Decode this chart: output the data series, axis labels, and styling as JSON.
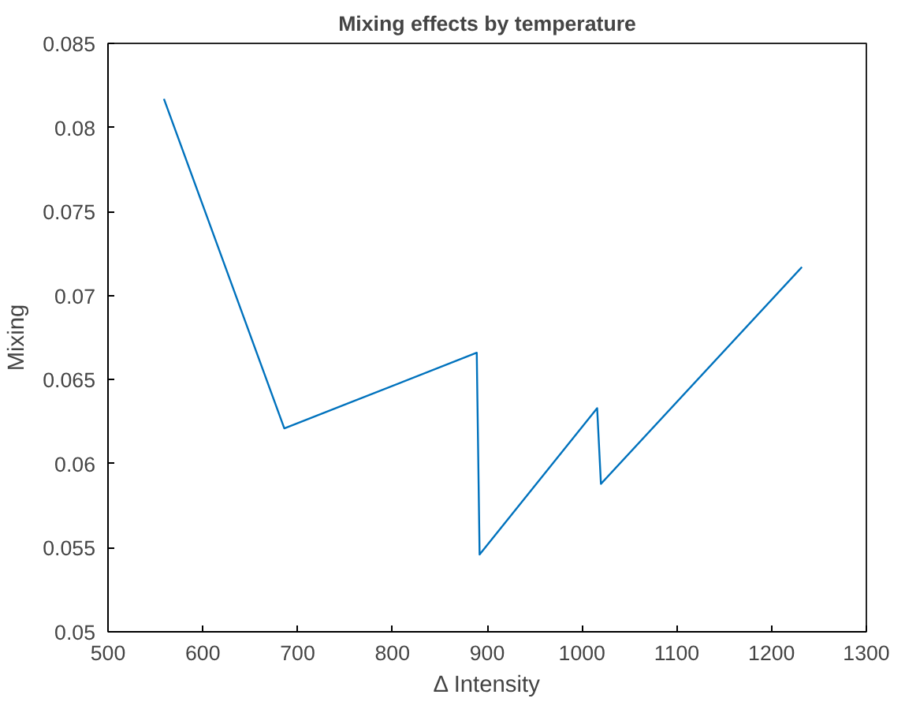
{
  "chart_data": {
    "type": "line",
    "title": "Mixing effects by temperature",
    "xlabel": "Δ Intensity",
    "ylabel": "Mixing",
    "x": [
      559,
      686,
      889,
      892,
      1016,
      1020,
      1232
    ],
    "series": [
      {
        "color": "#0072bd",
        "values": [
          0.0817,
          0.0621,
          0.0666,
          0.0546,
          0.0633,
          0.0588,
          0.0717
        ]
      }
    ],
    "xlim": [
      500,
      1300
    ],
    "ylim": [
      0.05,
      0.085
    ],
    "xticks": [
      500,
      600,
      700,
      800,
      900,
      1000,
      1100,
      1200,
      1300
    ],
    "yticks": [
      0.05,
      0.055,
      0.06,
      0.065,
      0.07,
      0.075,
      0.08,
      0.085
    ],
    "grid": false
  }
}
